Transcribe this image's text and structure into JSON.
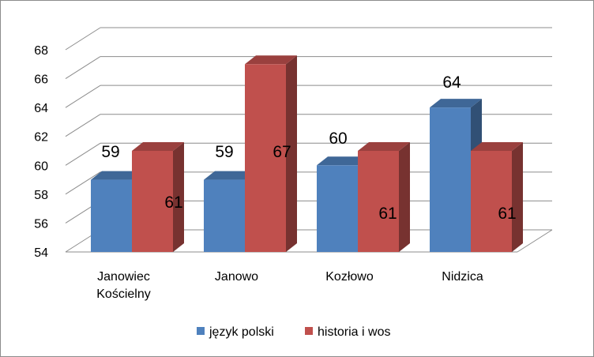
{
  "chart_data": {
    "type": "bar",
    "categories": [
      [
        "Janowiec",
        "Kościelny"
      ],
      [
        "Janowo"
      ],
      [
        "Kozłowo"
      ],
      [
        "Nidzica"
      ]
    ],
    "series": [
      {
        "name": "język polski",
        "values": [
          59,
          59,
          60,
          64
        ],
        "color": "#4f81bd"
      },
      {
        "name": "historia i wos",
        "values": [
          61,
          67,
          61,
          61
        ],
        "color": "#c0504d"
      }
    ],
    "ylim": [
      54,
      68
    ],
    "yticks": [
      54,
      56,
      58,
      60,
      62,
      64,
      66,
      68
    ],
    "title": "",
    "xlabel": "",
    "ylabel": "",
    "grid": true,
    "three_d": true,
    "legend_position": "bottom"
  }
}
